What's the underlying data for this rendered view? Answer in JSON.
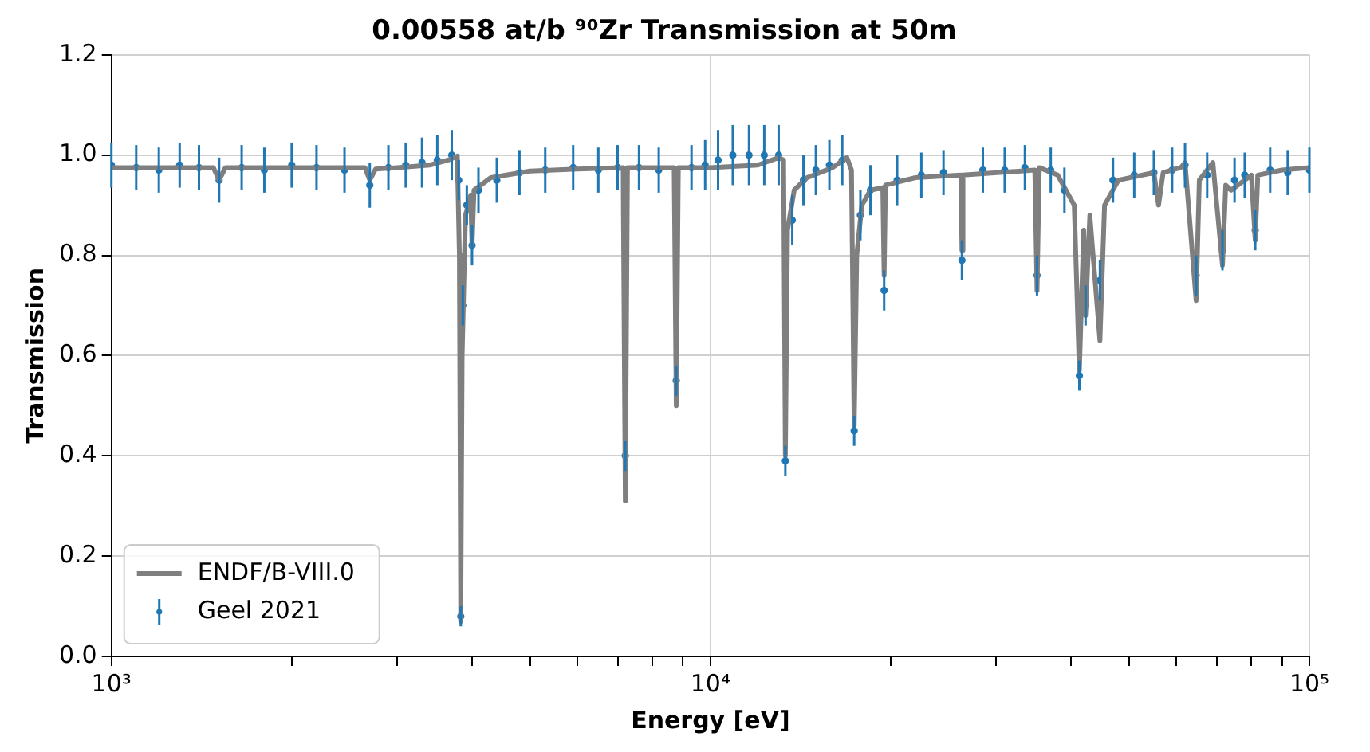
{
  "chart_data": {
    "type": "line",
    "title": "0.00558 at/b ⁹⁰Zr Transmission at 50m",
    "xlabel": "Energy [eV]",
    "ylabel": "Transmission",
    "log": "x",
    "grid": true,
    "legend": "bottom left",
    "xlim": [
      1000,
      100000
    ],
    "xticks": [
      {
        "value": 1000,
        "label": "10³"
      },
      {
        "value": 2000,
        "label": null
      },
      {
        "value": 3000,
        "label": null
      },
      {
        "value": 4000,
        "label": null
      },
      {
        "value": 5000,
        "label": null
      },
      {
        "value": 6000,
        "label": null
      },
      {
        "value": 7000,
        "label": null
      },
      {
        "value": 8000,
        "label": null
      },
      {
        "value": 9000,
        "label": null
      },
      {
        "value": 10000,
        "label": "10⁴"
      },
      {
        "value": 20000,
        "label": null
      },
      {
        "value": 30000,
        "label": null
      },
      {
        "value": 40000,
        "label": null
      },
      {
        "value": 50000,
        "label": null
      },
      {
        "value": 60000,
        "label": null
      },
      {
        "value": 70000,
        "label": null
      },
      {
        "value": 80000,
        "label": null
      },
      {
        "value": 90000,
        "label": null
      },
      {
        "value": 100000,
        "label": "10⁵"
      }
    ],
    "ylim": [
      0,
      1.2
    ],
    "yticks": [
      {
        "value": 0,
        "label": "0.0"
      },
      {
        "value": 0.2,
        "label": "0.2"
      },
      {
        "value": 0.4,
        "label": "0.4"
      },
      {
        "value": 0.6,
        "label": "0.6"
      },
      {
        "value": 0.8,
        "label": "0.8"
      },
      {
        "value": 1,
        "label": "1.0"
      },
      {
        "value": 1.2,
        "label": "1.2"
      }
    ],
    "series": [
      {
        "name": "Geel 2021",
        "type": "scatter",
        "color": "#1f77b4",
        "marker": "circle",
        "x": [
          1000,
          1100,
          1200,
          1300,
          1400,
          1513,
          1650,
          1800,
          2000,
          2200,
          2450,
          2700,
          2900,
          3100,
          3300,
          3500,
          3700,
          3800,
          3830,
          3860,
          3920,
          4000,
          4100,
          4400,
          4800,
          5300,
          5900,
          6500,
          7000,
          7210,
          7600,
          8200,
          8770,
          9300,
          9800,
          10300,
          10900,
          11600,
          12300,
          13000,
          13340,
          13700,
          14300,
          15000,
          15800,
          16600,
          17380,
          17800,
          18500,
          19500,
          20500,
          22500,
          24500,
          26300,
          28500,
          31000,
          33500,
          35100,
          37000,
          39000,
          41300,
          42300,
          44700,
          47000,
          51000,
          55000,
          59000,
          62000,
          64700,
          67500,
          71600,
          75000,
          78000,
          81200,
          86000,
          92000,
          100000
        ],
        "values": [
          0.98,
          0.975,
          0.97,
          0.98,
          0.975,
          0.95,
          0.975,
          0.97,
          0.98,
          0.975,
          0.97,
          0.94,
          0.975,
          0.98,
          0.985,
          0.99,
          1.0,
          0.95,
          0.08,
          0.7,
          0.9,
          0.82,
          0.93,
          0.95,
          0.965,
          0.97,
          0.975,
          0.97,
          0.975,
          0.4,
          0.975,
          0.97,
          0.55,
          0.975,
          0.98,
          0.99,
          1.0,
          1.0,
          1.0,
          1.0,
          0.39,
          0.87,
          0.95,
          0.97,
          0.98,
          0.99,
          0.45,
          0.88,
          0.93,
          0.73,
          0.95,
          0.96,
          0.965,
          0.79,
          0.97,
          0.97,
          0.975,
          0.76,
          0.97,
          0.93,
          0.56,
          0.7,
          0.75,
          0.95,
          0.96,
          0.965,
          0.97,
          0.98,
          0.76,
          0.96,
          0.81,
          0.95,
          0.96,
          0.85,
          0.97,
          0.965,
          0.97
        ],
        "errors": [
          0.045,
          0.045,
          0.045,
          0.045,
          0.045,
          0.045,
          0.045,
          0.045,
          0.045,
          0.045,
          0.045,
          0.045,
          0.045,
          0.045,
          0.05,
          0.05,
          0.05,
          0.04,
          0.02,
          0.04,
          0.04,
          0.04,
          0.045,
          0.045,
          0.045,
          0.045,
          0.045,
          0.045,
          0.045,
          0.03,
          0.045,
          0.045,
          0.03,
          0.045,
          0.05,
          0.06,
          0.06,
          0.06,
          0.06,
          0.06,
          0.03,
          0.05,
          0.05,
          0.05,
          0.05,
          0.05,
          0.03,
          0.05,
          0.05,
          0.04,
          0.05,
          0.045,
          0.045,
          0.04,
          0.045,
          0.045,
          0.045,
          0.04,
          0.045,
          0.045,
          0.03,
          0.04,
          0.04,
          0.045,
          0.045,
          0.045,
          0.045,
          0.045,
          0.04,
          0.045,
          0.04,
          0.045,
          0.045,
          0.04,
          0.045,
          0.045,
          0.045
        ]
      },
      {
        "name": "ENDF/B-VIII.0",
        "color": "#7f7f7f",
        "x": [
          1000,
          1480,
          1513,
          1550,
          2650,
          2700,
          2760,
          3000,
          3400,
          3650,
          3780,
          3810,
          3830,
          3850,
          3900,
          3980,
          4000,
          4030,
          4300,
          5000,
          6000,
          7150,
          7210,
          7270,
          8700,
          8770,
          8840,
          10000,
          12000,
          13000,
          13250,
          13340,
          13450,
          13800,
          14500,
          16000,
          16900,
          17200,
          17380,
          17550,
          17900,
          18500,
          19400,
          19500,
          19600,
          22000,
          26200,
          26300,
          26400,
          34800,
          35100,
          35400,
          38000,
          40500,
          41300,
          42000,
          42300,
          43000,
          44700,
          45500,
          48000,
          55000,
          56000,
          57000,
          61000,
          62000,
          64700,
          65500,
          69000,
          71600,
          72500,
          74000,
          80000,
          81200,
          82000,
          90000,
          100000
        ],
        "values": [
          0.975,
          0.975,
          0.95,
          0.975,
          0.975,
          0.95,
          0.972,
          0.975,
          0.98,
          0.99,
          0.998,
          0.8,
          0.07,
          0.6,
          0.88,
          0.92,
          0.82,
          0.93,
          0.955,
          0.968,
          0.972,
          0.975,
          0.31,
          0.975,
          0.975,
          0.5,
          0.975,
          0.975,
          0.98,
          0.995,
          0.99,
          0.4,
          0.85,
          0.93,
          0.955,
          0.975,
          0.995,
          0.97,
          0.46,
          0.8,
          0.9,
          0.93,
          0.935,
          0.76,
          0.94,
          0.955,
          0.96,
          0.81,
          0.96,
          0.97,
          0.73,
          0.975,
          0.96,
          0.9,
          0.57,
          0.85,
          0.68,
          0.88,
          0.63,
          0.9,
          0.95,
          0.965,
          0.9,
          0.965,
          0.975,
          0.985,
          0.71,
          0.95,
          0.985,
          0.78,
          0.94,
          0.93,
          0.96,
          0.83,
          0.96,
          0.97,
          0.975
        ]
      }
    ]
  }
}
